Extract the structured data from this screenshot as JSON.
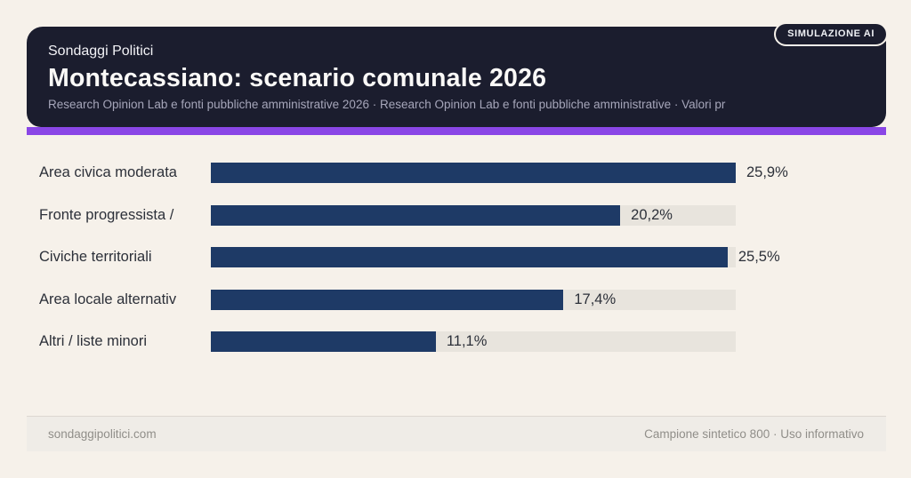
{
  "badge": {
    "label": "SIMULAZIONE AI"
  },
  "header": {
    "kicker": "Sondaggi Politici",
    "title": "Montecassiano: scenario comunale 2026",
    "subtitle": "Research Opinion Lab e fonti pubbliche amministrative 2026 · Research Opinion Lab e fonti pubbliche amministrative · Valori pr"
  },
  "chart_data": {
    "type": "bar",
    "orientation": "horizontal",
    "title": "Montecassiano: scenario comunale 2026",
    "categories": [
      "Area civica moderata",
      "Fronte progressista /",
      "Civiche territoriali",
      "Area locale alternativ",
      "Altri / liste minori"
    ],
    "values": [
      25.9,
      20.2,
      25.5,
      17.4,
      11.1
    ],
    "value_labels": [
      "25,9%",
      "20,2%",
      "25,5%",
      "17,4%",
      "11,1%"
    ],
    "xlim": [
      0,
      25.9
    ],
    "grid": false,
    "legend": false,
    "bar_color": "#1e3a66",
    "track_color": "#e8e4dd"
  },
  "footer": {
    "left": "sondaggipolitici.com",
    "right": "Campione sintetico 800 · Uso informativo"
  },
  "colors": {
    "page_bg": "#f6f1ea",
    "card_bg": "#1b1d2e",
    "accent": "#8a46e6",
    "bar": "#1e3a66",
    "track": "#e8e4dd"
  }
}
